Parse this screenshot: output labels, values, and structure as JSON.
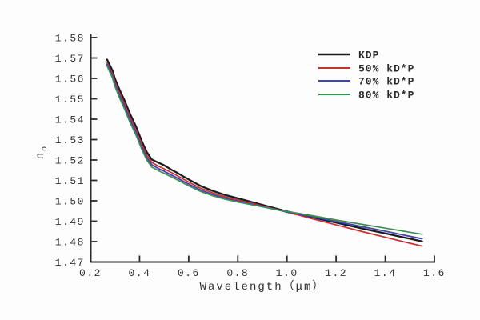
{
  "figure": {
    "background": "#fdfdfd",
    "axis_color": "#2b2b2b",
    "text_color": "#303030"
  },
  "chart_data": {
    "type": "line",
    "title": "",
    "xlabel": "Wavelength（μm）",
    "ylabel": "n_o",
    "ylabel_base": "n",
    "ylabel_sub": "o",
    "xlim": [
      0.2,
      1.6
    ],
    "ylim": [
      1.47,
      1.58
    ],
    "grid": false,
    "legend_position": "upper right",
    "x_ticks": [
      0.2,
      0.4,
      0.6,
      0.8,
      1.0,
      1.2,
      1.4,
      1.6
    ],
    "x_tick_labels": [
      "0.2",
      "0.4",
      "0.6",
      "0.8",
      "1.0",
      "1.2",
      "1.4",
      "1.6"
    ],
    "y_ticks": [
      1.47,
      1.48,
      1.49,
      1.5,
      1.51,
      1.52,
      1.53,
      1.54,
      1.55,
      1.56,
      1.57,
      1.58
    ],
    "y_tick_labels": [
      "1.47",
      "1.48",
      "1.49",
      "1.50",
      "1.51",
      "1.52",
      "1.53",
      "1.54",
      "1.55",
      "1.56",
      "1.57",
      "1.58"
    ],
    "x": [
      0.268,
      0.29,
      0.3,
      0.32,
      0.34,
      0.36,
      0.385,
      0.41,
      0.43,
      0.45,
      0.48,
      0.5,
      0.53,
      0.555,
      0.58,
      0.61,
      0.65,
      0.7,
      0.75,
      0.8,
      0.85,
      0.9,
      0.95,
      1.0,
      1.05,
      1.1,
      1.2,
      1.3,
      1.4,
      1.5,
      1.55
    ],
    "series": [
      {
        "name": "KDP",
        "color": "#1c1c1c",
        "line_width": 2.3,
        "values": [
          1.5692,
          1.5638,
          1.5598,
          1.554,
          1.5489,
          1.543,
          1.5366,
          1.529,
          1.5238,
          1.5202,
          1.5185,
          1.5174,
          1.5152,
          1.5136,
          1.5118,
          1.5098,
          1.5072,
          1.5048,
          1.5028,
          1.5012,
          1.4996,
          1.498,
          1.4964,
          1.4948,
          1.4934,
          1.492,
          1.4893,
          1.4866,
          1.484,
          1.4814,
          1.4801
        ]
      },
      {
        "name": "50% kD*P",
        "color": "#c93030",
        "line_width": 1.7,
        "values": [
          1.5676,
          1.5622,
          1.5582,
          1.5524,
          1.5472,
          1.5413,
          1.5349,
          1.5274,
          1.5222,
          1.5188,
          1.5168,
          1.5157,
          1.5138,
          1.5122,
          1.5105,
          1.5086,
          1.5061,
          1.5038,
          1.5019,
          1.5004,
          1.499,
          1.4975,
          1.496,
          1.4944,
          1.4929,
          1.4913,
          1.4882,
          1.4851,
          1.4821,
          1.4792,
          1.4778
        ]
      },
      {
        "name": "70% kD*P",
        "color": "#4646aa",
        "line_width": 1.9,
        "values": [
          1.5668,
          1.5612,
          1.5571,
          1.5512,
          1.5459,
          1.54,
          1.5336,
          1.5261,
          1.521,
          1.5176,
          1.5156,
          1.5145,
          1.5126,
          1.5111,
          1.5094,
          1.5076,
          1.5052,
          1.503,
          1.5012,
          1.4998,
          1.4985,
          1.4972,
          1.4959,
          1.4946,
          1.4935,
          1.4923,
          1.4899,
          1.4875,
          1.4851,
          1.4826,
          1.4814
        ]
      },
      {
        "name": "80% kD*P",
        "color": "#3f8f55",
        "line_width": 1.7,
        "values": [
          1.566,
          1.5602,
          1.556,
          1.55,
          1.5447,
          1.5388,
          1.5324,
          1.525,
          1.5199,
          1.5165,
          1.5146,
          1.5135,
          1.5117,
          1.5102,
          1.5086,
          1.5068,
          1.5045,
          1.5024,
          1.5007,
          1.4994,
          1.4982,
          1.497,
          1.4958,
          1.4948,
          1.4938,
          1.4928,
          1.4906,
          1.4886,
          1.4866,
          1.4846,
          1.4836
        ]
      }
    ]
  }
}
